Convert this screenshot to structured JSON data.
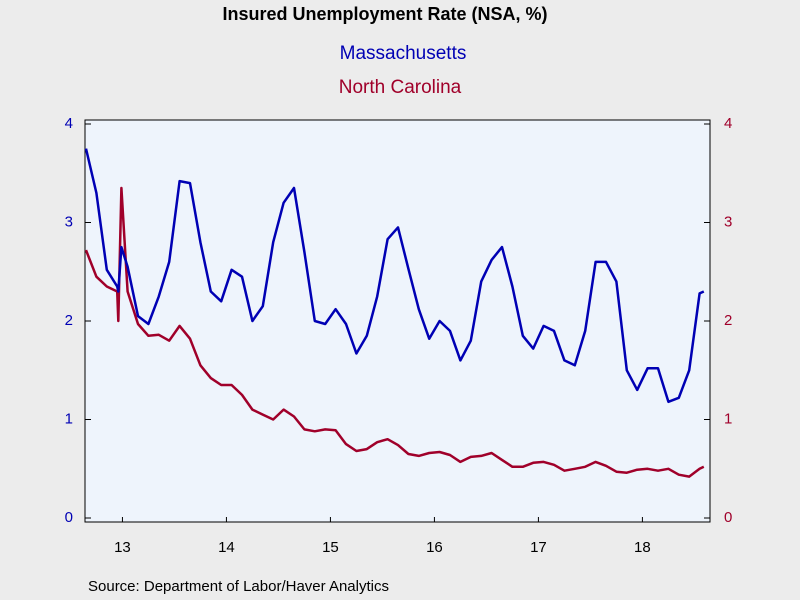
{
  "chart_data": {
    "type": "line",
    "title": "Insured Unemployment Rate (NSA, %)",
    "source": "Source:  Department of Labor/Haver Analytics",
    "x": [
      13.15,
      13.25,
      13.35,
      13.45,
      13.46,
      13.49,
      13.55,
      13.65,
      13.75,
      13.85,
      13.95,
      14.05,
      14.15,
      14.25,
      14.35,
      14.45,
      14.55,
      14.65,
      14.75,
      14.85,
      14.95,
      15.05,
      15.15,
      15.25,
      15.35,
      15.45,
      15.55,
      15.65,
      15.75,
      15.85,
      15.95,
      16.05,
      16.15,
      16.25,
      16.35,
      16.45,
      16.55,
      16.65,
      16.75,
      16.85,
      16.95,
      17.05,
      17.15,
      17.25,
      17.35,
      17.45,
      17.55,
      17.65,
      17.75,
      17.85,
      17.95,
      18.05,
      18.15,
      18.25,
      18.35,
      18.45,
      18.55,
      18.65,
      18.75,
      18.85,
      18.95,
      19.05,
      19.09
    ],
    "series": [
      {
        "name": "Massachusetts",
        "color": "#0000b4",
        "axis": "y",
        "values": [
          3.75,
          3.3,
          2.52,
          2.35,
          2.3,
          2.75,
          2.55,
          2.05,
          1.97,
          2.25,
          2.6,
          3.42,
          3.4,
          2.8,
          2.3,
          2.2,
          2.52,
          2.45,
          2.0,
          2.15,
          2.8,
          3.2,
          3.35,
          2.7,
          2.0,
          1.97,
          2.12,
          1.97,
          1.67,
          1.85,
          2.25,
          2.83,
          2.95,
          2.53,
          2.12,
          1.82,
          2.0,
          1.9,
          1.6,
          1.8,
          2.4,
          2.62,
          2.75,
          2.35,
          1.85,
          1.72,
          1.95,
          1.9,
          1.6,
          1.55,
          1.9,
          2.6,
          2.6,
          2.4,
          1.5,
          1.3,
          1.52,
          1.52,
          1.18,
          1.22,
          1.5,
          2.28,
          2.3
        ]
      },
      {
        "name": "North Carolina",
        "color": "#a0002a",
        "axis": "y2",
        "values": [
          2.72,
          2.45,
          2.35,
          2.3,
          2.0,
          3.35,
          2.3,
          1.97,
          1.85,
          1.86,
          1.8,
          1.95,
          1.82,
          1.55,
          1.42,
          1.35,
          1.35,
          1.25,
          1.1,
          1.05,
          1.0,
          1.1,
          1.03,
          0.9,
          0.88,
          0.9,
          0.89,
          0.75,
          0.68,
          0.7,
          0.77,
          0.8,
          0.74,
          0.65,
          0.63,
          0.66,
          0.67,
          0.64,
          0.57,
          0.62,
          0.63,
          0.66,
          0.59,
          0.52,
          0.52,
          0.56,
          0.57,
          0.54,
          0.48,
          0.5,
          0.52,
          0.57,
          0.53,
          0.47,
          0.46,
          0.49,
          0.5,
          0.48,
          0.5,
          0.44,
          0.42,
          0.5,
          0.52
        ]
      }
    ],
    "xlim": [
      13.14,
      19.15
    ],
    "xticks": [
      {
        "value": 13.5,
        "label": "13"
      },
      {
        "value": 14.5,
        "label": "14"
      },
      {
        "value": 15.5,
        "label": "15"
      },
      {
        "value": 16.5,
        "label": "16"
      },
      {
        "value": 17.5,
        "label": "17"
      },
      {
        "value": 18.5,
        "label": "18"
      }
    ],
    "ylim": [
      0,
      4
    ],
    "yticks": [
      0,
      1,
      2,
      3,
      4
    ],
    "y2lim": [
      0,
      4
    ],
    "y2ticks": [
      0,
      1,
      2,
      3,
      4
    ]
  }
}
